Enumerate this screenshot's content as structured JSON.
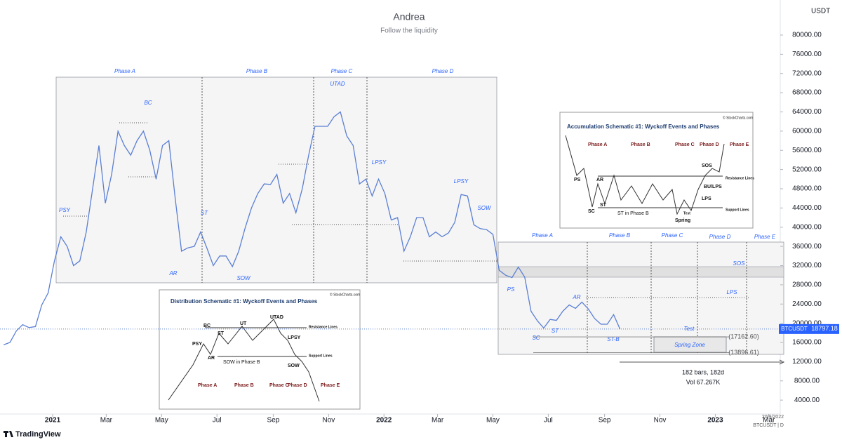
{
  "header": {
    "title": "Andrea",
    "subtitle": "Follow the liquidity"
  },
  "brand": "TradingView",
  "chart_data": {
    "type": "line",
    "y_label": "USDT",
    "symbol": "BTCUSDT",
    "last_price": 18797.18,
    "xlim": [
      "2020-11-04",
      "2023-03-12"
    ],
    "xticks": [
      {
        "value": "2021-01-01",
        "label": "2021"
      },
      {
        "value": "2021-03-01",
        "label": "Mar"
      },
      {
        "value": "2021-05-01",
        "label": "May"
      },
      {
        "value": "2021-07-01",
        "label": "Jul"
      },
      {
        "value": "2021-09-01",
        "label": "Sep"
      },
      {
        "value": "2021-11-01",
        "label": "Nov"
      },
      {
        "value": "2022-01-01",
        "label": "2022"
      },
      {
        "value": "2022-03-01",
        "label": "Mar"
      },
      {
        "value": "2022-05-01",
        "label": "May"
      },
      {
        "value": "2022-07-01",
        "label": "Jul"
      },
      {
        "value": "2022-09-01",
        "label": "Sep"
      },
      {
        "value": "2022-11-01",
        "label": "Nov"
      },
      {
        "value": "2023-01-01",
        "label": "2023"
      },
      {
        "value": "2023-03-01",
        "label": "Mar"
      }
    ],
    "ylim": [
      1100,
      87300
    ],
    "yticks": [
      {
        "value": 4000,
        "label": "4000.00"
      },
      {
        "value": 8000,
        "label": "8000.00"
      },
      {
        "value": 12000,
        "label": "12000.00"
      },
      {
        "value": 16000,
        "label": "16000.00"
      },
      {
        "value": 20000,
        "label": "20000.00"
      },
      {
        "value": 24000,
        "label": "24000.00"
      },
      {
        "value": 28000,
        "label": "28000.00"
      },
      {
        "value": 32000,
        "label": "32000.00"
      },
      {
        "value": 36000,
        "label": "36000.00"
      },
      {
        "value": 40000,
        "label": "40000.00"
      },
      {
        "value": 44000,
        "label": "44000.00"
      },
      {
        "value": 48000,
        "label": "48000.00"
      },
      {
        "value": 52000,
        "label": "52000.00"
      },
      {
        "value": 56000,
        "label": "56000.00"
      },
      {
        "value": 60000,
        "label": "60000.00"
      },
      {
        "value": 64000,
        "label": "64000.00"
      },
      {
        "value": 68000,
        "label": "68000.00"
      },
      {
        "value": 72000,
        "label": "72000.00"
      },
      {
        "value": 76000,
        "label": "76000.00"
      },
      {
        "value": 80000,
        "label": "80000.00"
      }
    ],
    "x": [
      "2020-11-08",
      "2020-11-15",
      "2020-11-22",
      "2020-11-29",
      "2020-12-06",
      "2020-12-13",
      "2020-12-20",
      "2020-12-27",
      "2021-01-03",
      "2021-01-10",
      "2021-01-17",
      "2021-01-24",
      "2021-01-31",
      "2021-02-07",
      "2021-02-14",
      "2021-02-21",
      "2021-02-28",
      "2021-03-07",
      "2021-03-14",
      "2021-03-21",
      "2021-03-28",
      "2021-04-04",
      "2021-04-11",
      "2021-04-18",
      "2021-04-25",
      "2021-05-02",
      "2021-05-09",
      "2021-05-16",
      "2021-05-23",
      "2021-05-30",
      "2021-06-06",
      "2021-06-13",
      "2021-06-20",
      "2021-06-27",
      "2021-07-04",
      "2021-07-11",
      "2021-07-18",
      "2021-07-25",
      "2021-08-01",
      "2021-08-08",
      "2021-08-15",
      "2021-08-22",
      "2021-08-29",
      "2021-09-05",
      "2021-09-12",
      "2021-09-19",
      "2021-09-26",
      "2021-10-03",
      "2021-10-10",
      "2021-10-17",
      "2021-10-24",
      "2021-10-31",
      "2021-11-07",
      "2021-11-14",
      "2021-11-21",
      "2021-11-28",
      "2021-12-05",
      "2021-12-12",
      "2021-12-19",
      "2021-12-26",
      "2022-01-02",
      "2022-01-09",
      "2022-01-16",
      "2022-01-23",
      "2022-01-30",
      "2022-02-06",
      "2022-02-13",
      "2022-02-20",
      "2022-02-27",
      "2022-03-06",
      "2022-03-13",
      "2022-03-20",
      "2022-03-27",
      "2022-04-03",
      "2022-04-10",
      "2022-04-17",
      "2022-04-24",
      "2022-05-01",
      "2022-05-08",
      "2022-05-15",
      "2022-05-22",
      "2022-05-29",
      "2022-06-05",
      "2022-06-12",
      "2022-06-19",
      "2022-06-26",
      "2022-07-03",
      "2022-07-10",
      "2022-07-17",
      "2022-07-24",
      "2022-07-31",
      "2022-08-07",
      "2022-08-14",
      "2022-08-21",
      "2022-08-28",
      "2022-09-04",
      "2022-09-11",
      "2022-09-18"
    ],
    "series": [
      {
        "name": "BTCUSDT",
        "color": "#5b7fd4",
        "values": [
          15500,
          16000,
          18400,
          19700,
          19100,
          19300,
          23800,
          26300,
          33000,
          38000,
          36000,
          32000,
          33000,
          39000,
          48000,
          57000,
          45000,
          51000,
          60000,
          57000,
          55000,
          58000,
          60000,
          56000,
          50000,
          57000,
          58000,
          46000,
          35000,
          35700,
          36000,
          39000,
          35600,
          32000,
          34000,
          34000,
          31800,
          35000,
          39800,
          44000,
          47000,
          49000,
          48900,
          51000,
          45000,
          47000,
          43000,
          48000,
          55000,
          61000,
          61000,
          61000,
          63000,
          64000,
          59000,
          57000,
          49000,
          50000,
          46500,
          50000,
          47000,
          41500,
          42000,
          35000,
          38000,
          42000,
          42000,
          38000,
          39000,
          38000,
          38800,
          41000,
          46800,
          46500,
          40500,
          39700,
          39500,
          38500,
          31000,
          30000,
          29500,
          31700,
          29600,
          22500,
          20500,
          19000,
          20800,
          20600,
          22500,
          23800,
          23100,
          24400,
          23000,
          21000,
          19800,
          19800,
          21800,
          18797.18
        ]
      }
    ],
    "distribution_phases": [
      "Phase A",
      "Phase B",
      "Phase C",
      "Phase D"
    ],
    "distribution_events": [
      "PSY",
      "BC",
      "AR",
      "ST",
      "SOW",
      "UTAD",
      "LPSY",
      "LPSY",
      "SOW"
    ],
    "accumulation_phases": [
      "Phase A",
      "Phase B",
      "Phase C",
      "Phase D",
      "Phase E"
    ],
    "accumulation_events": [
      "SOS",
      "LPS",
      "AR",
      "PS",
      "SC",
      "ST",
      "ST-B",
      "Test",
      "Spring Zone"
    ],
    "levels": [
      {
        "value": 17162.6,
        "label": "(17162.60)"
      },
      {
        "value": 13896.61,
        "label": "(13896.61)"
      }
    ],
    "measure": [
      "182 bars, 182d",
      "Vol 67.267K"
    ],
    "footer_date": "20/9/2022",
    "footer_symbol": "BTCUSDT | D"
  },
  "distribution_inset": {
    "title": "Distribution Schematic #1: Wyckoff Events and Phases",
    "source": "© StockCharts.com",
    "phases": [
      "Phase A",
      "Phase B",
      "Phase C",
      "Phase D",
      "Phase E"
    ],
    "events": [
      "PSY",
      "BC",
      "AR",
      "ST",
      "UT",
      "UTAD",
      "LPSY",
      "SOW in Phase B",
      "SOW",
      "Resistance Lines",
      "Support Lines"
    ]
  },
  "accumulation_inset": {
    "title": "Accumulation Schematic #1: Wyckoff Events and Phases",
    "source": "© StockCharts.com",
    "phases": [
      "Phase A",
      "Phase B",
      "Phase C",
      "Phase D",
      "Phase E"
    ],
    "events": [
      "PS",
      "SC",
      "AR",
      "ST",
      "ST in Phase B",
      "Spring",
      "Test",
      "LPS",
      "BU/LPS",
      "SOS",
      "Resistance Lines",
      "Support Lines"
    ]
  }
}
